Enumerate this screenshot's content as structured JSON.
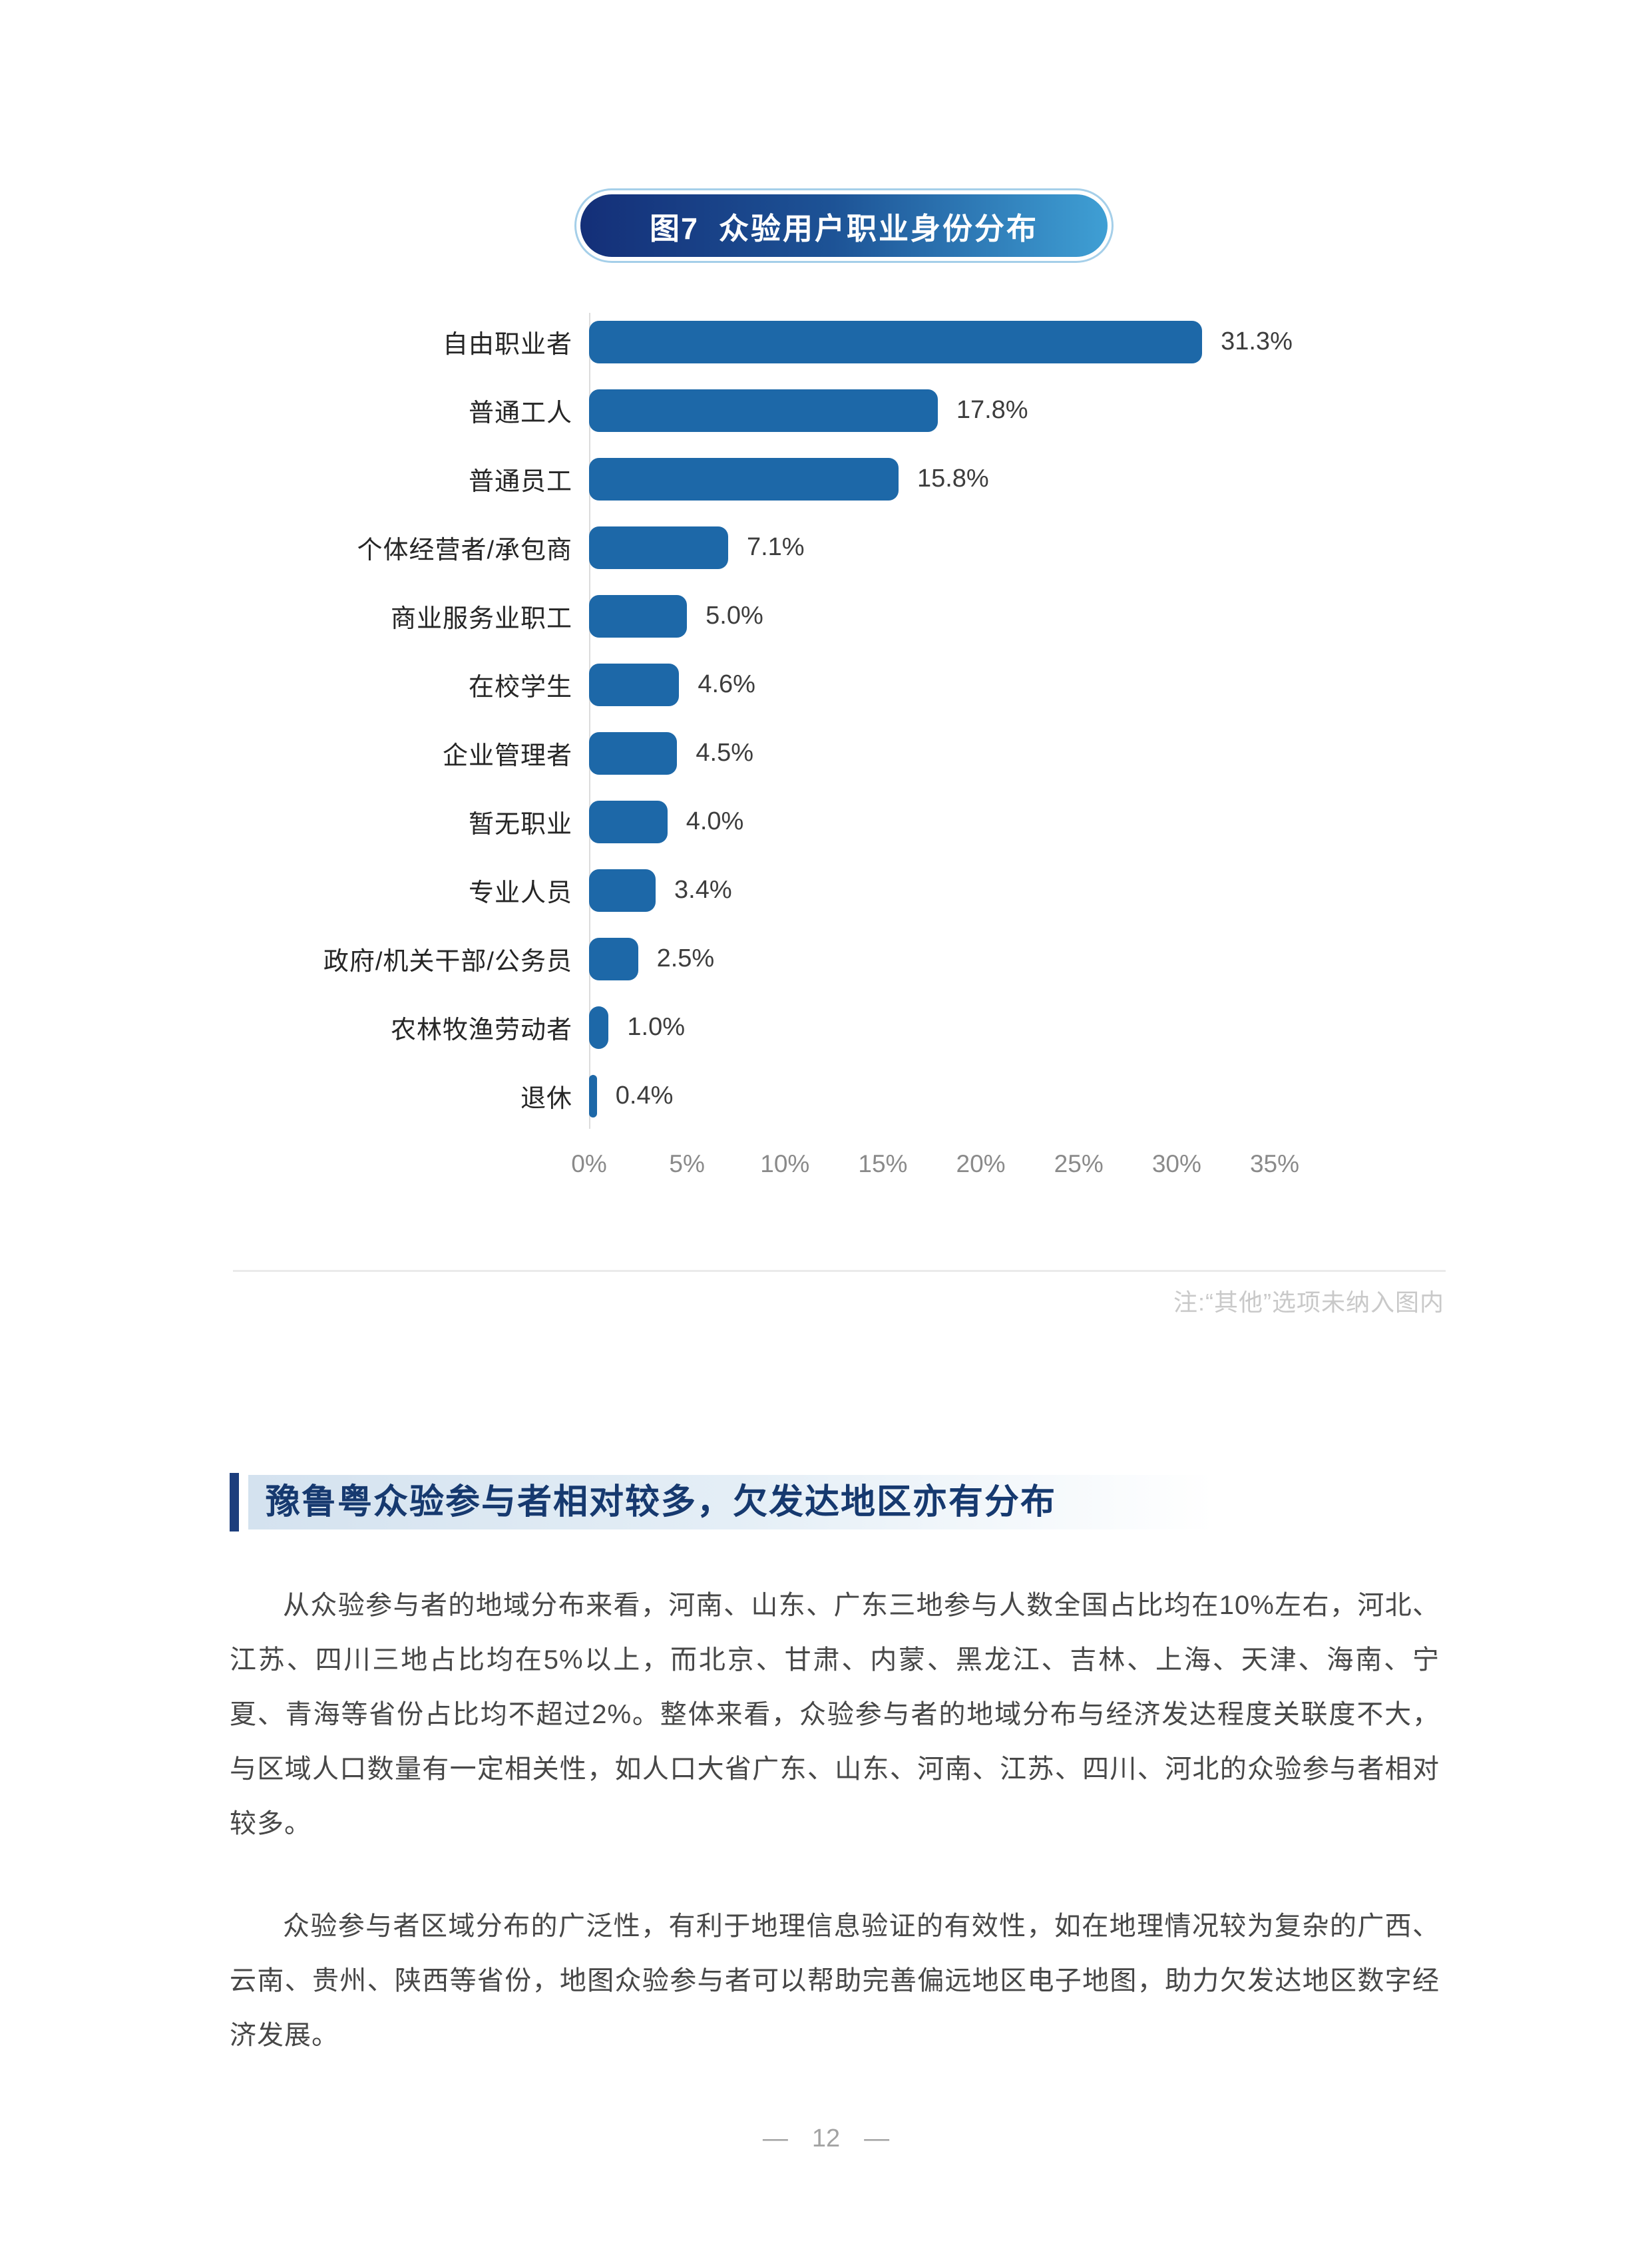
{
  "figure": {
    "badge_label": "图7",
    "badge_title": "众验用户职业身份分布",
    "note": "注:“其他”选项未纳入图内"
  },
  "chart_data": {
    "type": "bar",
    "orientation": "horizontal",
    "title": "图7 众验用户职业身份分布",
    "categories": [
      "自由职业者",
      "普通工人",
      "普通员工",
      "个体经营者/承包商",
      "商业服务业职工",
      "在校学生",
      "企业管理者",
      "暂无职业",
      "专业人员",
      "政府/机关干部/公务员",
      "农林牧渔劳动者",
      "退休"
    ],
    "values": [
      31.3,
      17.8,
      15.8,
      7.1,
      5.0,
      4.6,
      4.5,
      4.0,
      3.4,
      2.5,
      1.0,
      0.4
    ],
    "value_labels": [
      "31.3%",
      "17.8%",
      "15.8%",
      "7.1%",
      "5.0%",
      "4.6%",
      "4.5%",
      "4.0%",
      "3.4%",
      "2.5%",
      "1.0%",
      "0.4%"
    ],
    "x_ticks": [
      "0%",
      "5%",
      "10%",
      "15%",
      "20%",
      "25%",
      "30%",
      "35%"
    ],
    "x_tick_values": [
      0,
      5,
      10,
      15,
      20,
      25,
      30,
      35
    ],
    "xlim": [
      0,
      35
    ],
    "bar_color": "#1D68A8",
    "grid": false,
    "legend": null,
    "xlabel": "",
    "ylabel": "",
    "note": "注:“其他”选项未纳入图内"
  },
  "section": {
    "heading": "豫鲁粤众验参与者相对较多，欠发达地区亦有分布",
    "paragraphs": [
      "从众验参与者的地域分布来看，河南、山东、广东三地参与人数全国占比均在10%左右，河北、江苏、四川三地占比均在5%以上，而北京、甘肃、内蒙、黑龙江、吉林、上海、天津、海南、宁夏、青海等省份占比均不超过2%。整体来看，众验参与者的地域分布与经济发达程度关联度不大，与区域人口数量有一定相关性，如人口大省广东、山东、河南、江苏、四川、河北的众验参与者相对较多。",
      "众验参与者区域分布的广泛性，有利于地理信息验证的有效性，如在地理情况较为复杂的广西、云南、贵州、陕西等省份，地图众验参与者可以帮助完善偏远地区电子地图，助力欠发达地区数字经济发展。"
    ]
  },
  "footer": {
    "dash_left": "—",
    "page_number": "12",
    "dash_right": "—"
  }
}
